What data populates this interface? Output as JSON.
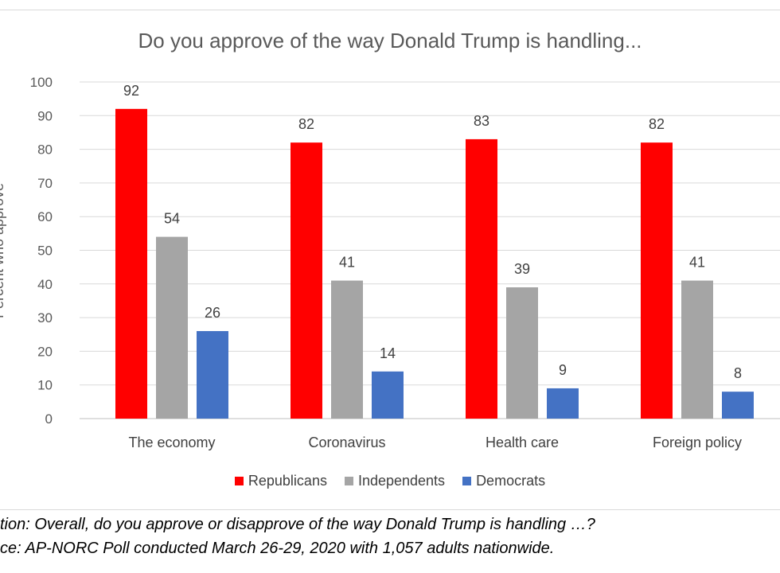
{
  "chart_data": {
    "type": "bar",
    "title": "Do you approve of the way Donald Trump is handling...",
    "ylabel": "Percent who approve",
    "xlabel": "",
    "ylim": [
      0,
      100
    ],
    "yticks": [
      "0",
      "10",
      "20",
      "30",
      "40",
      "50",
      "60",
      "70",
      "80",
      "90",
      "100"
    ],
    "categories": [
      "The economy",
      "Coronavirus",
      "Health care",
      "Foreign policy"
    ],
    "series": [
      {
        "name": "Republicans",
        "color": "#ff0000",
        "values": [
          92,
          82,
          83,
          82
        ]
      },
      {
        "name": "Independents",
        "color": "#a5a5a5",
        "values": [
          54,
          41,
          39,
          41
        ]
      },
      {
        "name": "Democrats",
        "color": "#4472c4",
        "values": [
          26,
          14,
          9,
          8
        ]
      }
    ],
    "grid": true,
    "legend": "bottom"
  },
  "notes": {
    "question": "tion: Overall, do you approve or disapprove of the way Donald Trump is handling …?",
    "source": "ce: AP-NORC Poll conducted March 26-29, 2020 with 1,057 adults nationwide."
  }
}
